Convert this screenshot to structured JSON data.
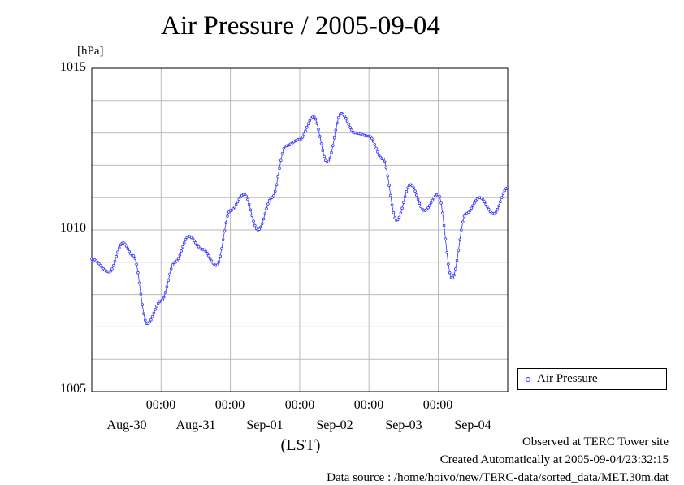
{
  "chart_data": {
    "type": "line",
    "title": "Air Pressure / 2005-09-04",
    "ylabel": "[hPa]",
    "xlabel": "(LST)",
    "ylim": [
      1005,
      1015
    ],
    "yticks": [
      "1015",
      "1010",
      "1005"
    ],
    "x_time_ticks": [
      "00:00",
      "00:00",
      "00:00",
      "00:00",
      "00:00"
    ],
    "x_date_labels": [
      "Aug-30",
      "Aug-31",
      "Sep-01",
      "Sep-02",
      "Sep-03",
      "Sep-04"
    ],
    "grid": true,
    "legend_position": "bottom-right",
    "series": [
      {
        "name": "Air Pressure",
        "color": "#3333ff",
        "x_days": [
          0.0,
          0.25,
          0.45,
          0.6,
          0.8,
          1.0,
          1.2,
          1.4,
          1.6,
          1.8,
          2.0,
          2.2,
          2.4,
          2.6,
          2.8,
          3.0,
          3.2,
          3.4,
          3.6,
          3.8,
          4.0,
          4.2,
          4.4,
          4.6,
          4.8,
          5.0,
          5.2,
          5.4,
          5.6,
          5.8,
          6.0
        ],
        "values": [
          1009.1,
          1008.7,
          1009.6,
          1009.2,
          1007.1,
          1007.8,
          1009.0,
          1009.8,
          1009.4,
          1008.9,
          1010.6,
          1011.1,
          1010.0,
          1011.0,
          1012.6,
          1012.8,
          1013.5,
          1012.1,
          1013.6,
          1013.0,
          1012.9,
          1012.2,
          1010.3,
          1011.4,
          1010.6,
          1011.1,
          1008.5,
          1010.5,
          1011.0,
          1010.5,
          1011.3
        ]
      }
    ]
  },
  "legend": {
    "label": "Air Pressure"
  },
  "footer": {
    "observed": "Observed at TERC Tower site",
    "created": "Created Automatically at 2005-09-04/23:32:15",
    "source": "Data source : /home/hoivo/new/TERC-data/sorted_data/MET.30m.dat"
  }
}
